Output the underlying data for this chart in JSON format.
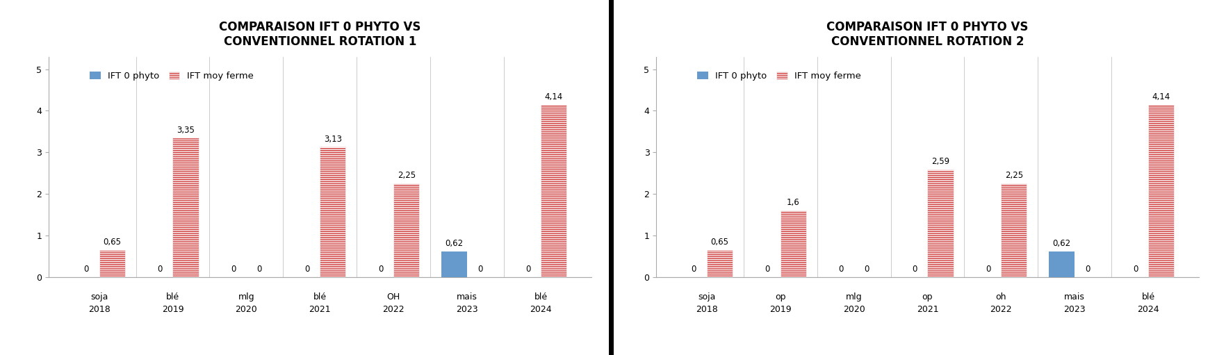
{
  "chart1": {
    "title": "COMPARAISON IFT 0 PHYTO VS\nCONVENTIONNEL ROTATION 1",
    "categories_line1": [
      "soja",
      "blé",
      "mlg",
      "blé",
      "OH",
      "mais",
      "blé"
    ],
    "categories_line2": [
      "2018",
      "2019",
      "2020",
      "2021",
      "2022",
      "2023",
      "2024"
    ],
    "ift_0phyto": [
      0,
      0,
      0,
      0,
      0,
      0.62,
      0
    ],
    "ift_moy": [
      0.65,
      3.35,
      0,
      3.13,
      2.25,
      0,
      4.14
    ],
    "labels_0phyto": [
      "0",
      "0",
      "0",
      "0",
      "0",
      "0,62",
      "0"
    ],
    "labels_moy": [
      "0,65",
      "3,35",
      "0",
      "3,13",
      "2,25",
      "0",
      "4,14"
    ]
  },
  "chart2": {
    "title": "COMPARAISON IFT 0 PHYTO VS\nCONVENTIONNEL ROTATION 2",
    "categories_line1": [
      "soja",
      "op",
      "mlg",
      "op",
      "oh",
      "mais",
      "blé"
    ],
    "categories_line2": [
      "2018",
      "2019",
      "2020",
      "2021",
      "2022",
      "2023",
      "2024"
    ],
    "ift_0phyto": [
      0,
      0,
      0,
      0,
      0,
      0.62,
      0
    ],
    "ift_moy": [
      0.65,
      1.6,
      0,
      2.59,
      2.25,
      0,
      4.14
    ],
    "labels_0phyto": [
      "0",
      "0",
      "0",
      "0",
      "0",
      "0,62",
      "0"
    ],
    "labels_moy": [
      "0,65",
      "1,6",
      "0",
      "2,59",
      "2,25",
      "0",
      "4,14"
    ]
  },
  "color_blue": "#6699CC",
  "color_red": "#CC3333",
  "hatch_red": "-----",
  "legend_blue": "IFT 0 phyto",
  "legend_red": "IFT moy ferme",
  "ylim": [
    0,
    5.3
  ],
  "yticks": [
    0,
    1,
    2,
    3,
    4,
    5
  ],
  "bar_width": 0.35,
  "bg_color": "#FFFFFF",
  "plot_bg": "#FFFFFF",
  "title_fontsize": 12,
  "label_fontsize": 8.5,
  "tick_fontsize": 9,
  "legend_fontsize": 9.5
}
